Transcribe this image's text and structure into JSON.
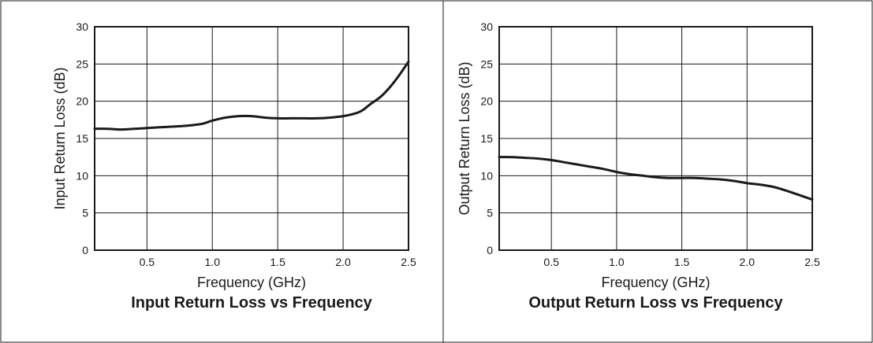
{
  "colors": {
    "ink": "#1a1a1a",
    "grid": "#1a1a1a",
    "background": "#ffffff"
  },
  "chart_data": [
    {
      "type": "line",
      "title": "Input Return Loss vs Frequency",
      "xlabel": "Frequency (GHz)",
      "ylabel": "Input Return Loss (dB)",
      "xlim": [
        0.1,
        2.5
      ],
      "ylim": [
        0,
        30
      ],
      "xticks": [
        0.5,
        1.0,
        1.5,
        2.0,
        2.5
      ],
      "xtick_labels": [
        "0.5",
        "1.0",
        "1.5",
        "2.0",
        "2.5"
      ],
      "yticks": [
        0,
        5,
        10,
        15,
        20,
        25,
        30
      ],
      "ytick_labels": [
        "0",
        "5",
        "10",
        "15",
        "20",
        "25",
        "30"
      ],
      "grid": true,
      "series": [
        {
          "x": [
            0.1,
            0.2,
            0.3,
            0.4,
            0.5,
            0.6,
            0.7,
            0.8,
            0.9,
            0.95,
            1.0,
            1.1,
            1.2,
            1.3,
            1.4,
            1.5,
            1.6,
            1.7,
            1.8,
            1.9,
            2.0,
            2.1,
            2.15,
            2.2,
            2.3,
            2.4,
            2.5
          ],
          "y": [
            16.3,
            16.3,
            16.2,
            16.3,
            16.4,
            16.5,
            16.6,
            16.7,
            16.9,
            17.1,
            17.4,
            17.8,
            18.0,
            18.0,
            17.8,
            17.7,
            17.7,
            17.7,
            17.7,
            17.8,
            18.0,
            18.4,
            18.8,
            19.5,
            20.8,
            22.8,
            25.3
          ]
        }
      ]
    },
    {
      "type": "line",
      "title": "Output Return Loss vs Frequency",
      "xlabel": "Frequency (GHz)",
      "ylabel": "Output Return Loss (dB)",
      "xlim": [
        0.1,
        2.5
      ],
      "ylim": [
        0,
        30
      ],
      "xticks": [
        0.5,
        1.0,
        1.5,
        2.0,
        2.5
      ],
      "xtick_labels": [
        "0.5",
        "1.0",
        "1.5",
        "2.0",
        "2.5"
      ],
      "yticks": [
        0,
        5,
        10,
        15,
        20,
        25,
        30
      ],
      "ytick_labels": [
        "0",
        "5",
        "10",
        "15",
        "20",
        "25",
        "30"
      ],
      "grid": true,
      "series": [
        {
          "x": [
            0.1,
            0.2,
            0.3,
            0.4,
            0.5,
            0.6,
            0.7,
            0.8,
            0.9,
            1.0,
            1.1,
            1.2,
            1.3,
            1.4,
            1.5,
            1.6,
            1.7,
            1.8,
            1.9,
            2.0,
            2.1,
            2.2,
            2.3,
            2.4,
            2.5
          ],
          "y": [
            12.5,
            12.5,
            12.4,
            12.3,
            12.1,
            11.8,
            11.5,
            11.2,
            10.9,
            10.5,
            10.2,
            10.0,
            9.8,
            9.7,
            9.7,
            9.7,
            9.6,
            9.5,
            9.3,
            9.0,
            8.8,
            8.5,
            8.0,
            7.4,
            6.8
          ]
        }
      ]
    }
  ]
}
